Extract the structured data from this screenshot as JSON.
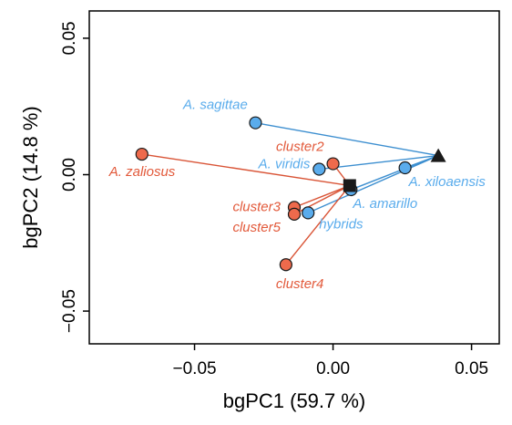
{
  "chart_data": {
    "type": "scatter",
    "xlabel": "bgPC1 (59.7 %)",
    "ylabel": "bgPC2 (14.8 %)",
    "xlim": [
      -0.088,
      0.06
    ],
    "ylim": [
      -0.062,
      0.06
    ],
    "x_ticks": [
      -0.05,
      0.0,
      0.05
    ],
    "x_tick_labels": [
      "−0.05",
      "0.00",
      "0.05"
    ],
    "y_ticks": [
      -0.05,
      0.0,
      0.05
    ],
    "y_tick_labels": [
      "−0.05",
      "0.00",
      "0.05"
    ],
    "grid": false,
    "colors": {
      "blue": "#5aacec",
      "red": "#ee6a4c",
      "blue_line": "#3d8fd0",
      "red_line": "#d95436",
      "blue_label": "#5aacec",
      "red_label": "#e2593a",
      "marker_dark": "#1a1a1a"
    },
    "anchors": [
      {
        "kind": "triangle",
        "x": 0.038,
        "y": 0.007
      },
      {
        "kind": "square",
        "x": 0.006,
        "y": -0.004
      }
    ],
    "points": [
      {
        "label": "A. sagittae",
        "x": -0.028,
        "y": 0.019,
        "group": "blue",
        "anchor": 0
      },
      {
        "label": "A. viridis",
        "x": -0.005,
        "y": 0.002,
        "group": "blue",
        "anchor": 0
      },
      {
        "label": "A. xiloaensis",
        "x": 0.026,
        "y": 0.0025,
        "group": "blue",
        "anchor": 0
      },
      {
        "label": "A. amarillo",
        "x": 0.0065,
        "y": -0.0055,
        "group": "blue",
        "anchor": 0
      },
      {
        "label": "hybrids",
        "x": -0.009,
        "y": -0.014,
        "group": "blue",
        "anchor": 0
      },
      {
        "label": "A. zaliosus",
        "x": -0.069,
        "y": 0.0075,
        "group": "red",
        "anchor": 1
      },
      {
        "label": "cluster2",
        "x": 0.0,
        "y": 0.004,
        "group": "red",
        "anchor": 1
      },
      {
        "label": "cluster3",
        "x": -0.014,
        "y": -0.012,
        "group": "red",
        "anchor": 1
      },
      {
        "label": "cluster5",
        "x": -0.014,
        "y": -0.0145,
        "group": "red",
        "anchor": 1
      },
      {
        "label": "cluster4",
        "x": -0.017,
        "y": -0.033,
        "group": "red",
        "anchor": 1
      }
    ]
  }
}
